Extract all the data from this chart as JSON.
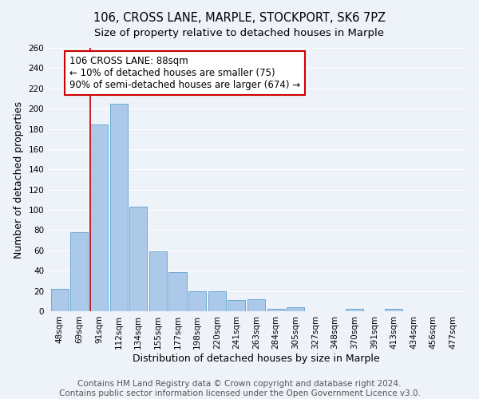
{
  "title": "106, CROSS LANE, MARPLE, STOCKPORT, SK6 7PZ",
  "subtitle": "Size of property relative to detached houses in Marple",
  "xlabel": "Distribution of detached houses by size in Marple",
  "ylabel": "Number of detached properties",
  "bar_labels": [
    "48sqm",
    "69sqm",
    "91sqm",
    "112sqm",
    "134sqm",
    "155sqm",
    "177sqm",
    "198sqm",
    "220sqm",
    "241sqm",
    "263sqm",
    "284sqm",
    "305sqm",
    "327sqm",
    "348sqm",
    "370sqm",
    "391sqm",
    "413sqm",
    "434sqm",
    "456sqm",
    "477sqm"
  ],
  "bar_values": [
    22,
    78,
    184,
    205,
    103,
    59,
    39,
    20,
    20,
    11,
    12,
    2,
    4,
    0,
    0,
    2,
    0,
    2,
    0,
    0,
    0
  ],
  "bar_color": "#adc9ea",
  "bar_edge_color": "#6aaad4",
  "annotation_line_x_label": "91sqm",
  "annotation_line_color": "#cc0000",
  "annotation_box_text": "106 CROSS LANE: 88sqm\n← 10% of detached houses are smaller (75)\n90% of semi-detached houses are larger (674) →",
  "ylim": [
    0,
    260
  ],
  "yticks": [
    0,
    20,
    40,
    60,
    80,
    100,
    120,
    140,
    160,
    180,
    200,
    220,
    240,
    260
  ],
  "footer_line1": "Contains HM Land Registry data © Crown copyright and database right 2024.",
  "footer_line2": "Contains public sector information licensed under the Open Government Licence v3.0.",
  "bg_color": "#eef2f9",
  "grid_color": "#ffffff",
  "title_fontsize": 10.5,
  "subtitle_fontsize": 9.5,
  "axis_label_fontsize": 9,
  "tick_fontsize": 7.5,
  "footer_fontsize": 7.5
}
